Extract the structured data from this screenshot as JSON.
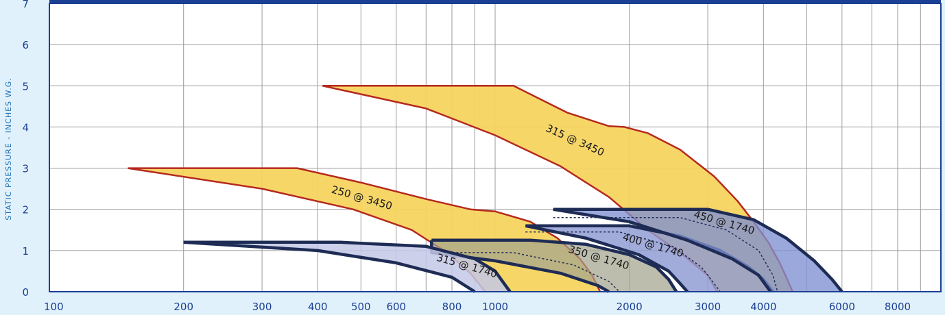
{
  "chart_data": {
    "type": "area",
    "title": "",
    "xlabel": "",
    "ylabel": "STATIC PRESSURE - INCHES W.G.",
    "x_scale": "log",
    "xlim": [
      100,
      10000
    ],
    "ylim": [
      0,
      7
    ],
    "grid": true,
    "x_ticks": [
      {
        "value": 100,
        "label": "100"
      },
      {
        "value": 200,
        "label": "200"
      },
      {
        "value": 300,
        "label": "300"
      },
      {
        "value": 400,
        "label": "400"
      },
      {
        "value": 500,
        "label": "500"
      },
      {
        "value": 600,
        "label": "600"
      },
      {
        "value": 800,
        "label": "800"
      },
      {
        "value": 1000,
        "label": "1000"
      },
      {
        "value": 2000,
        "label": "2000"
      },
      {
        "value": 3000,
        "label": "3000"
      },
      {
        "value": 4000,
        "label": "4000"
      },
      {
        "value": 6000,
        "label": "6000"
      },
      {
        "value": 8000,
        "label": "8000"
      }
    ],
    "y_ticks": [
      {
        "value": 0,
        "label": "0"
      },
      {
        "value": 1,
        "label": "1"
      },
      {
        "value": 2,
        "label": "2"
      },
      {
        "value": 3,
        "label": "3"
      },
      {
        "value": 4,
        "label": "4"
      },
      {
        "value": 5,
        "label": "5"
      },
      {
        "value": 6,
        "label": "6"
      },
      {
        "value": 7,
        "label": "7"
      }
    ],
    "colors": {
      "background": "#e1f1fb",
      "plot_area": "#ffffff",
      "grid": "#9a9a9a",
      "frame": "#1b3f93",
      "yellow_fill": "#f6d35c",
      "yellow_edge": "#b5291e",
      "navy_edge": "#1e2c55",
      "light_blue_fill": "#c3c8e6",
      "blue_fill": "#7e90d2",
      "slate_fill": "#9aa3b3"
    },
    "series": [
      {
        "name": "315 @ 3450",
        "label_at": {
          "x": 1500,
          "y": 3.6
        },
        "label_rotation": 24,
        "fill": "#f6d35c",
        "edge": "#b5291e",
        "opacity": 0.93,
        "upper": [
          [
            410,
            5
          ],
          [
            1100,
            5
          ],
          [
            1450,
            4.35
          ],
          [
            1800,
            4.02
          ],
          [
            1950,
            4.0
          ],
          [
            2200,
            3.85
          ],
          [
            2600,
            3.45
          ],
          [
            3100,
            2.8
          ],
          [
            3500,
            2.2
          ],
          [
            3800,
            1.7
          ],
          [
            4100,
            1.2
          ],
          [
            4350,
            0.7
          ],
          [
            4500,
            0.35
          ],
          [
            4650,
            0
          ]
        ],
        "lower": [
          [
            410,
            5
          ],
          [
            700,
            4.45
          ],
          [
            1000,
            3.8
          ],
          [
            1400,
            3.05
          ],
          [
            1800,
            2.3
          ],
          [
            2200,
            1.5
          ],
          [
            2600,
            0.95
          ],
          [
            3000,
            0.4
          ],
          [
            3150,
            0
          ]
        ]
      },
      {
        "name": "250 @ 3450",
        "label_at": {
          "x": 500,
          "y": 2.2
        },
        "label_rotation": 16,
        "fill": "#f6d35c",
        "edge": "#b5291e",
        "opacity": 0.93,
        "upper": [
          [
            150,
            3
          ],
          [
            360,
            3
          ],
          [
            500,
            2.65
          ],
          [
            700,
            2.25
          ],
          [
            880,
            2.0
          ],
          [
            1000,
            1.95
          ],
          [
            1200,
            1.7
          ],
          [
            1380,
            1.3
          ],
          [
            1550,
            0.8
          ],
          [
            1650,
            0.4
          ],
          [
            1720,
            0
          ]
        ],
        "lower": [
          [
            150,
            3
          ],
          [
            300,
            2.5
          ],
          [
            480,
            2.0
          ],
          [
            650,
            1.5
          ],
          [
            780,
            0.95
          ],
          [
            880,
            0.45
          ],
          [
            950,
            0
          ]
        ]
      },
      {
        "name": "350 @ 1740",
        "label_at": {
          "x": 1700,
          "y": 0.75
        },
        "label_rotation": 16,
        "fill": "#a4a48e",
        "edge": "#1e2c55",
        "opacity": 0.72,
        "upper": [
          [
            720,
            1.25
          ],
          [
            1200,
            1.25
          ],
          [
            1600,
            1.15
          ],
          [
            2000,
            0.9
          ],
          [
            2300,
            0.6
          ],
          [
            2450,
            0.3
          ],
          [
            2550,
            0
          ]
        ],
        "lower": [
          [
            720,
            1.25
          ],
          [
            720,
            0.95
          ],
          [
            1000,
            0.75
          ],
          [
            1400,
            0.45
          ],
          [
            1700,
            0.15
          ],
          [
            1800,
            0
          ]
        ],
        "inner": [
          [
            720,
            0.95
          ],
          [
            1100,
            0.95
          ],
          [
            1500,
            0.65
          ],
          [
            1800,
            0.25
          ],
          [
            1900,
            0
          ]
        ]
      },
      {
        "name": "315 @ 1740",
        "label_at": {
          "x": 860,
          "y": 0.55
        },
        "label_rotation": 16,
        "fill": "#c3c8e6",
        "edge": "#1e2c55",
        "opacity": 0.85,
        "upper": [
          [
            200,
            1.2
          ],
          [
            450,
            1.2
          ],
          [
            700,
            1.1
          ],
          [
            900,
            0.8
          ],
          [
            1000,
            0.5
          ],
          [
            1080,
            0
          ]
        ],
        "lower": [
          [
            200,
            1.2
          ],
          [
            400,
            1.0
          ],
          [
            600,
            0.7
          ],
          [
            800,
            0.35
          ],
          [
            900,
            0
          ]
        ]
      },
      {
        "name": "400 @ 1740",
        "label_at": {
          "x": 2250,
          "y": 1.05
        },
        "label_rotation": 16,
        "fill": "#8e9ad2",
        "edge": "#1e2c55",
        "opacity": 0.82,
        "upper": [
          [
            1170,
            1.6
          ],
          [
            2000,
            1.6
          ],
          [
            2600,
            1.35
          ],
          [
            3200,
            1.0
          ],
          [
            3700,
            0.6
          ],
          [
            4000,
            0.3
          ],
          [
            4200,
            0
          ]
        ],
        "lower": [
          [
            1170,
            1.6
          ],
          [
            1600,
            1.3
          ],
          [
            2100,
            0.9
          ],
          [
            2450,
            0.5
          ],
          [
            2600,
            0.2
          ],
          [
            2700,
            0
          ]
        ],
        "inner": [
          [
            1170,
            1.45
          ],
          [
            1900,
            1.45
          ],
          [
            2500,
            1.1
          ],
          [
            2900,
            0.6
          ],
          [
            3100,
            0.2
          ],
          [
            3200,
            0
          ]
        ]
      },
      {
        "name": "450 @ 1740",
        "label_at": {
          "x": 3250,
          "y": 1.6
        },
        "label_rotation": 16,
        "fill": "#7e90d2",
        "edge": "#1e2c55",
        "opacity": 0.78,
        "upper": [
          [
            1350,
            2
          ],
          [
            3000,
            2
          ],
          [
            3800,
            1.75
          ],
          [
            4500,
            1.3
          ],
          [
            5200,
            0.75
          ],
          [
            5700,
            0.3
          ],
          [
            6000,
            0
          ]
        ],
        "lower": [
          [
            1350,
            2
          ],
          [
            2000,
            1.7
          ],
          [
            2700,
            1.25
          ],
          [
            3400,
            0.8
          ],
          [
            3900,
            0.4
          ],
          [
            4150,
            0
          ]
        ],
        "inner": [
          [
            1350,
            1.8
          ],
          [
            2600,
            1.8
          ],
          [
            3300,
            1.5
          ],
          [
            3900,
            1.0
          ],
          [
            4200,
            0.4
          ],
          [
            4300,
            0
          ]
        ]
      }
    ]
  }
}
